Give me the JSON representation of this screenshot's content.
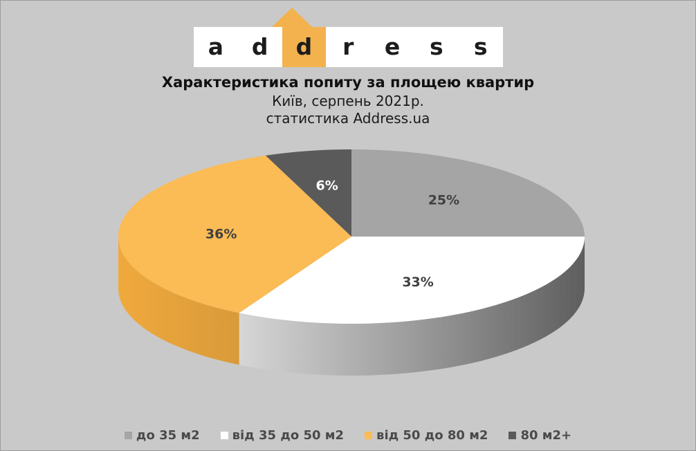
{
  "logo": {
    "letters": [
      "a",
      "d",
      "d",
      "r",
      "e",
      "s",
      "s"
    ],
    "accent_index": 2,
    "accent_color": "#f3b24e"
  },
  "chart_data": {
    "type": "pie",
    "title": "Характеристика попиту за площею квартир",
    "subtitle_lines": [
      "Київ, серпень 2021р.",
      "статистика Address.ua"
    ],
    "categories": [
      "до 35 м2",
      "від 35 до 50 м2",
      "від 50 до 80 м2",
      "80 м2+"
    ],
    "values": [
      25,
      33,
      36,
      6
    ],
    "labels": [
      "25%",
      "33%",
      "36%",
      "6%"
    ],
    "colors": [
      "#a5a5a5",
      "#ffffff",
      "#fbbb55",
      "#5a5a5a"
    ],
    "label_colors": [
      "#404040",
      "#404040",
      "#404040",
      "#ffffff"
    ],
    "style": "3d",
    "legend_position": "bottom"
  }
}
